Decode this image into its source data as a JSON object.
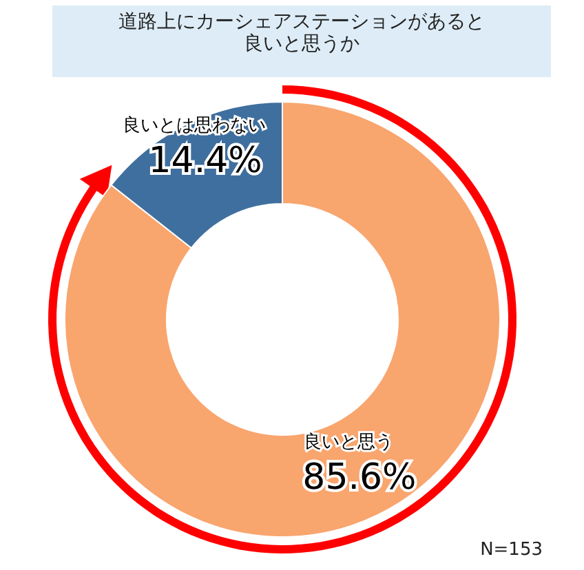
{
  "chart_data": {
    "type": "donut",
    "title": "道路上にカーシェアステーションがあると良いと思うか",
    "categories": [
      "良いと思う",
      "良いとは思わない"
    ],
    "values": [
      85.6,
      14.4
    ],
    "colors": [
      "#f9a56e",
      "#3f6f9e"
    ],
    "value_labels": [
      "85.6%",
      "14.4%"
    ],
    "annotations": [
      "N=153"
    ]
  }
}
